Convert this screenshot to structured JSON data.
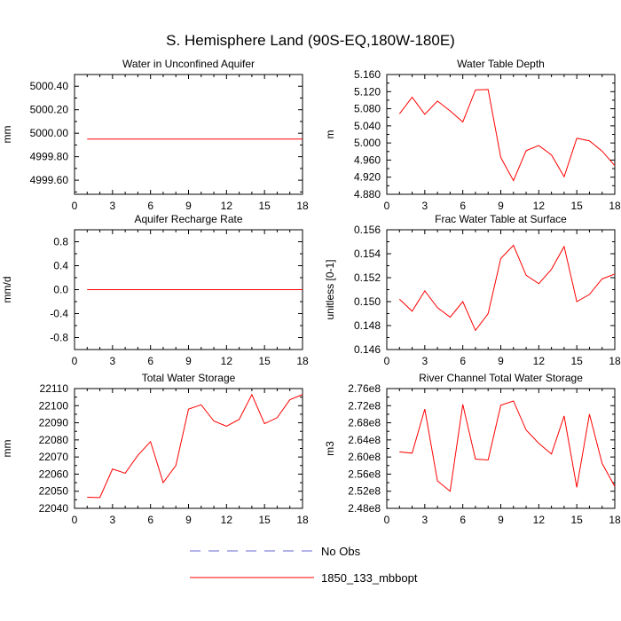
{
  "figure": {
    "title": "S. Hemisphere Land (90S-EQ,180W-180E)",
    "legend": [
      {
        "label": "No Obs",
        "color": "#6666cc",
        "dash": "dashed"
      },
      {
        "label": "1850_133_mbbopt",
        "color": "#ff0000",
        "dash": "solid"
      }
    ]
  },
  "chart_data": [
    {
      "type": "line",
      "title": "Water in Unconfined Aquifer",
      "xlabel": "",
      "ylabel": "mm",
      "xlim": [
        0,
        18
      ],
      "ylim": [
        4999.48,
        5000.5
      ],
      "xticks": [
        0,
        3,
        6,
        9,
        12,
        15,
        18
      ],
      "xtick_labels": [
        "0",
        "3",
        "6",
        "9",
        "12",
        "15",
        "18"
      ],
      "yticks": [
        4999.6,
        4999.8,
        5000.0,
        5000.2,
        5000.4
      ],
      "ytick_labels": [
        "4999.60",
        "4999.80",
        "5000.00",
        "5000.20",
        "5000.40"
      ],
      "series": [
        {
          "name": "1850_133_mbbopt",
          "x": [
            1,
            2,
            3,
            4,
            5,
            6,
            7,
            8,
            9,
            10,
            11,
            12,
            13,
            14,
            15,
            16,
            17,
            18
          ],
          "values": [
            4999.95,
            4999.95,
            4999.95,
            4999.95,
            4999.95,
            4999.95,
            4999.95,
            4999.95,
            4999.95,
            4999.95,
            4999.95,
            4999.95,
            4999.95,
            4999.95,
            4999.95,
            4999.95,
            4999.95,
            4999.95
          ]
        }
      ]
    },
    {
      "type": "line",
      "title": "Water Table Depth",
      "xlabel": "",
      "ylabel": "m",
      "xlim": [
        0,
        18
      ],
      "ylim": [
        4.88,
        5.16
      ],
      "xticks": [
        0,
        3,
        6,
        9,
        12,
        15,
        18
      ],
      "xtick_labels": [
        "0",
        "3",
        "6",
        "9",
        "12",
        "15",
        "18"
      ],
      "yticks": [
        4.88,
        4.92,
        4.96,
        5.0,
        5.04,
        5.08,
        5.12,
        5.16
      ],
      "ytick_labels": [
        "4.880",
        "4.920",
        "4.960",
        "5.000",
        "5.040",
        "5.080",
        "5.120",
        "5.160"
      ],
      "series": [
        {
          "name": "1850_133_mbbopt",
          "x": [
            1,
            2,
            3,
            4,
            5,
            6,
            7,
            8,
            9,
            10,
            11,
            12,
            13,
            14,
            15,
            16,
            17,
            18
          ],
          "values": [
            5.068,
            5.107,
            5.067,
            5.098,
            5.075,
            5.049,
            5.124,
            5.125,
            4.966,
            4.912,
            4.982,
            4.994,
            4.972,
            4.921,
            5.011,
            5.005,
            4.981,
            4.947
          ]
        }
      ]
    },
    {
      "type": "line",
      "title": "Aquifer Recharge Rate",
      "xlabel": "",
      "ylabel": "mm/d",
      "xlim": [
        0,
        18
      ],
      "ylim": [
        -1.0,
        1.0
      ],
      "xticks": [
        0,
        3,
        6,
        9,
        12,
        15,
        18
      ],
      "xtick_labels": [
        "0",
        "3",
        "6",
        "9",
        "12",
        "15",
        "18"
      ],
      "yticks": [
        -0.8,
        -0.4,
        0.0,
        0.4,
        0.8
      ],
      "ytick_labels": [
        "-0.8",
        "-0.4",
        "0.0",
        "0.4",
        "0.8"
      ],
      "series": [
        {
          "name": "1850_133_mbbopt",
          "x": [
            1,
            2,
            3,
            4,
            5,
            6,
            7,
            8,
            9,
            10,
            11,
            12,
            13,
            14,
            15,
            16,
            17,
            18
          ],
          "values": [
            0,
            0,
            0,
            0,
            0,
            0,
            0,
            0,
            0,
            0,
            0,
            0,
            0,
            0,
            0,
            0,
            0,
            0
          ]
        }
      ]
    },
    {
      "type": "line",
      "title": "Frac Water Table at Surface",
      "xlabel": "",
      "ylabel": "unitless [0-1]",
      "xlim": [
        0,
        18
      ],
      "ylim": [
        0.146,
        0.156
      ],
      "xticks": [
        0,
        3,
        6,
        9,
        12,
        15,
        18
      ],
      "xtick_labels": [
        "0",
        "3",
        "6",
        "9",
        "12",
        "15",
        "18"
      ],
      "yticks": [
        0.146,
        0.148,
        0.15,
        0.152,
        0.154,
        0.156
      ],
      "ytick_labels": [
        "0.146",
        "0.148",
        "0.150",
        "0.152",
        "0.154",
        "0.156"
      ],
      "series": [
        {
          "name": "1850_133_mbbopt",
          "x": [
            1,
            2,
            3,
            4,
            5,
            6,
            7,
            8,
            9,
            10,
            11,
            12,
            13,
            14,
            15,
            16,
            17,
            18
          ],
          "values": [
            0.1502,
            0.1492,
            0.1509,
            0.1495,
            0.1487,
            0.15,
            0.1476,
            0.149,
            0.1536,
            0.1547,
            0.1522,
            0.1515,
            0.1527,
            0.1546,
            0.15,
            0.1506,
            0.1519,
            0.1523
          ]
        }
      ]
    },
    {
      "type": "line",
      "title": "Total Water Storage",
      "xlabel": "",
      "ylabel": "mm",
      "xlim": [
        0,
        18
      ],
      "ylim": [
        22040,
        22110
      ],
      "xticks": [
        0,
        3,
        6,
        9,
        12,
        15,
        18
      ],
      "xtick_labels": [
        "0",
        "3",
        "6",
        "9",
        "12",
        "15",
        "18"
      ],
      "yticks": [
        22040,
        22050,
        22060,
        22070,
        22080,
        22090,
        22100,
        22110
      ],
      "ytick_labels": [
        "22040",
        "22050",
        "22060",
        "22070",
        "22080",
        "22090",
        "22100",
        "22110"
      ],
      "series": [
        {
          "name": "1850_133_mbbopt",
          "x": [
            1,
            2,
            3,
            4,
            5,
            6,
            7,
            8,
            9,
            10,
            11,
            12,
            13,
            14,
            15,
            16,
            17,
            18
          ],
          "values": [
            22046.5,
            22046.3,
            22063,
            22060.5,
            22071,
            22079,
            22055,
            22065,
            22098,
            22100.5,
            22091,
            22088,
            22092,
            22106.5,
            22089.5,
            22093,
            22103.5,
            22106.5
          ]
        }
      ]
    },
    {
      "type": "line",
      "title": "River Channel Total Water Storage",
      "xlabel": "",
      "ylabel": "m3",
      "xlim": [
        0,
        18
      ],
      "ylim": [
        248000000.0,
        276000000.0
      ],
      "xticks": [
        0,
        3,
        6,
        9,
        12,
        15,
        18
      ],
      "xtick_labels": [
        "0",
        "3",
        "6",
        "9",
        "12",
        "15",
        "18"
      ],
      "yticks": [
        248000000.0,
        252000000.0,
        256000000.0,
        260000000.0,
        264000000.0,
        268000000.0,
        272000000.0,
        276000000.0
      ],
      "ytick_labels": [
        "2.48e8",
        "2.52e8",
        "2.56e8",
        "2.60e8",
        "2.64e8",
        "2.68e8",
        "2.72e8",
        "2.76e8"
      ],
      "series": [
        {
          "name": "1850_133_mbbopt",
          "x": [
            1,
            2,
            3,
            4,
            5,
            6,
            7,
            8,
            9,
            10,
            11,
            12,
            13,
            14,
            15,
            16,
            17,
            18
          ],
          "values": [
            261200000.0,
            260900000.0,
            271200000.0,
            254400000.0,
            252000000.0,
            272300000.0,
            259500000.0,
            259300000.0,
            272100000.0,
            273100000.0,
            266300000.0,
            263200000.0,
            260700000.0,
            269600000.0,
            252900000.0,
            270000000.0,
            258500000.0,
            253100000.0
          ]
        }
      ]
    }
  ]
}
